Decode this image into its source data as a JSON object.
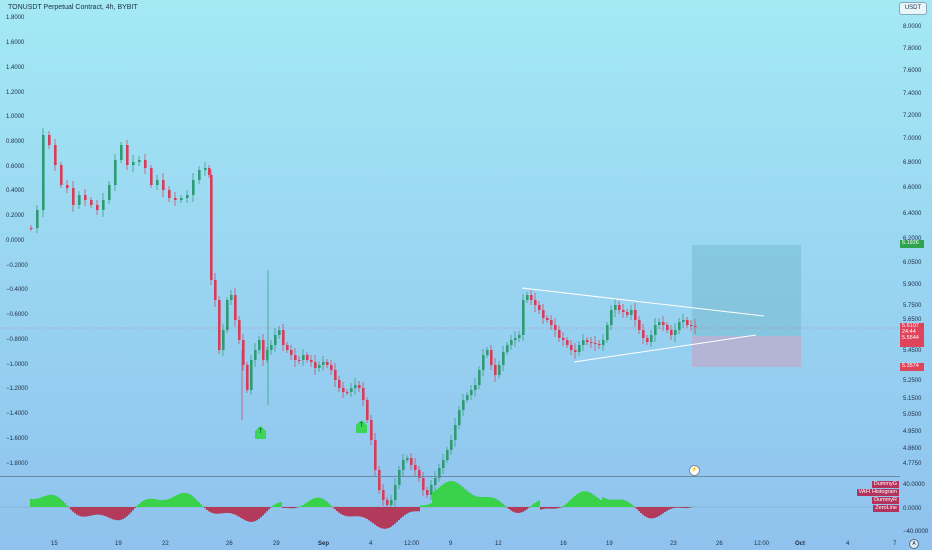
{
  "header": {
    "title": "TONUSDT Perpetual Contract, 4h, BYBIT",
    "currency": "USDT"
  },
  "left_scale": [
    "1.8000",
    "1.6000",
    "1.4000",
    "1.2000",
    "1.0000",
    "0.8000",
    "0.6000",
    "0.4000",
    "0.2000",
    "0.0000",
    "−0.2000",
    "−0.4000",
    "−0.6000",
    "−0.8000",
    "−1.0000",
    "−1.2000",
    "−1.4000",
    "−1.6000",
    "−1.8000"
  ],
  "right_scale": [
    "8.0000",
    "7.8000",
    "7.6000",
    "7.4000",
    "7.2000",
    "7.0000",
    "6.8000",
    "6.6000",
    "6.4000",
    "6.2000",
    "6.0500",
    "5.9000",
    "5.7500",
    "5.6500",
    "5.4500",
    "5.2500",
    "5.1500",
    "5.0500",
    "4.9500",
    "4.8600",
    "4.7750"
  ],
  "price_tags": {
    "current": {
      "price": "5.6107",
      "countdown": "24:44",
      "extra": "5.5544"
    },
    "target_green": "6.1926",
    "stop_red": "5.3574"
  },
  "oscillator": {
    "labels": [
      "DummyG",
      "VAFI Histogram",
      "DummyR",
      "ZeroLine"
    ],
    "scale": [
      "40.0000",
      "0.0000",
      "−40.0000"
    ]
  },
  "time_axis": [
    "15",
    "19",
    "22",
    "26",
    "29",
    "Sep",
    "4",
    "12:00",
    "9",
    "12",
    "16",
    "19",
    "23",
    "26",
    "12:00",
    "Oct",
    "4",
    "7"
  ],
  "markers": [
    "T",
    "T"
  ],
  "colors": {
    "up": "#2f9a73",
    "down": "#d93c58",
    "hist_up": "#3ad24b",
    "hist_down": "#b23a5a",
    "pattern_line": "#ffffff",
    "target_zone": "#6fb6c7",
    "stop_zone": "#c7a2c5"
  }
}
